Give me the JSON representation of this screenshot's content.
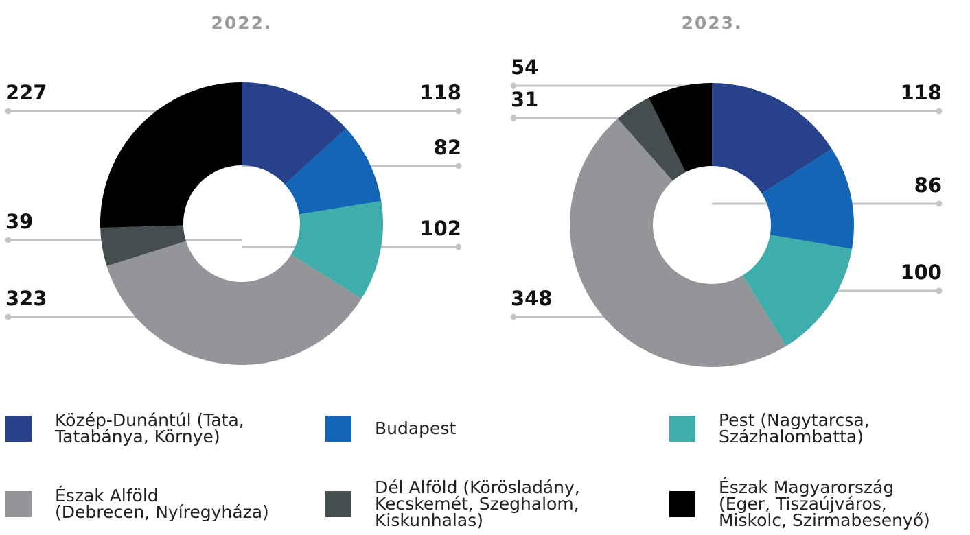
{
  "chart_data": [
    {
      "type": "donut",
      "title": "2022.",
      "values": [
        118,
        82,
        102,
        323,
        39,
        227
      ]
    },
    {
      "type": "donut",
      "title": "2023.",
      "values": [
        118,
        86,
        100,
        348,
        31,
        54
      ]
    }
  ],
  "legend": {
    "categories": [
      "Közép-Dunántúl (Tata,\nTatabánya, Környe)",
      "Budapest",
      "Pest (Nagytarcsa,\nSzázhalombatta)",
      "Észak Alföld\n(Debrecen, Nyíregyháza)",
      "Dél Alföld (Körösladány,\nKecskemét, Szeghalom,\nKiskunhalas)",
      "Észak Magyarország\n(Eger, Tiszaújváros,\nMiskolc, Szirmabesenyő)"
    ],
    "colors": [
      "#27428a",
      "#1565b6",
      "#40adad",
      "#939598",
      "#454d4f",
      "#000000"
    ]
  }
}
